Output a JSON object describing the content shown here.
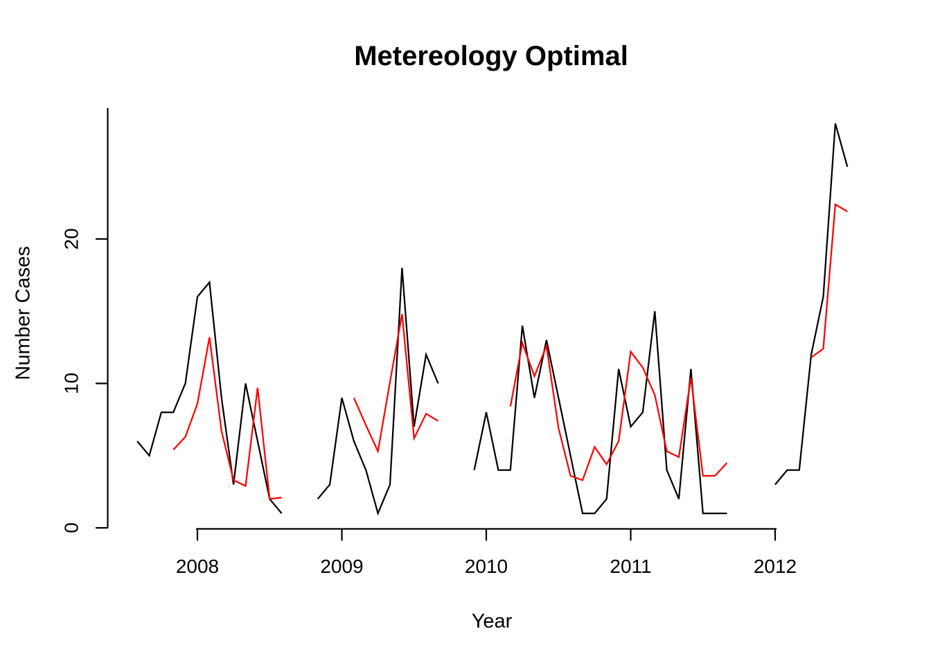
{
  "chart_data": {
    "type": "line",
    "title": "Metereology Optimal",
    "xlabel": "Year",
    "ylabel": "Number Cases",
    "x_ticks": [
      2008,
      2009,
      2010,
      2011,
      2012
    ],
    "y_ticks": [
      0,
      10,
      20
    ],
    "xlim": [
      2007.4,
      2012.8
    ],
    "ylim": [
      0,
      29
    ],
    "grid": false,
    "legend": "none",
    "x_unit": "decimal year (monthly points); line breaks = missing data",
    "series": [
      {
        "name": "black-series",
        "color": "#000000",
        "segments": [
          [
            [
              2007.5833,
              6
            ],
            [
              2007.6667,
              5
            ],
            [
              2007.75,
              8
            ],
            [
              2007.8333,
              8
            ],
            [
              2007.9167,
              10
            ],
            [
              2008.0,
              16
            ],
            [
              2008.0833,
              17
            ],
            [
              2008.1667,
              9
            ],
            [
              2008.25,
              3
            ],
            [
              2008.3333,
              10
            ],
            [
              2008.4167,
              6
            ],
            [
              2008.5,
              2
            ],
            [
              2008.5833,
              1
            ]
          ],
          [
            [
              2008.8333,
              2
            ],
            [
              2008.9167,
              3
            ],
            [
              2009.0,
              9
            ],
            [
              2009.0833,
              6
            ],
            [
              2009.1667,
              4
            ],
            [
              2009.25,
              1
            ],
            [
              2009.3333,
              3
            ],
            [
              2009.4167,
              18
            ],
            [
              2009.5,
              7
            ],
            [
              2009.5833,
              12
            ],
            [
              2009.6667,
              10
            ]
          ],
          [
            [
              2009.9167,
              4
            ],
            [
              2010.0,
              8
            ],
            [
              2010.0833,
              4
            ],
            [
              2010.1667,
              4
            ],
            [
              2010.25,
              14
            ],
            [
              2010.3333,
              9
            ],
            [
              2010.4167,
              13
            ],
            [
              2010.5,
              9
            ],
            [
              2010.5833,
              5
            ],
            [
              2010.6667,
              1
            ],
            [
              2010.75,
              1
            ],
            [
              2010.8333,
              2
            ],
            [
              2010.9167,
              11
            ],
            [
              2011.0,
              7
            ],
            [
              2011.0833,
              8
            ],
            [
              2011.1667,
              15
            ],
            [
              2011.25,
              4
            ],
            [
              2011.3333,
              2
            ],
            [
              2011.4167,
              11
            ],
            [
              2011.5,
              1
            ],
            [
              2011.5833,
              1
            ],
            [
              2011.6667,
              1
            ]
          ],
          [
            [
              2012.0,
              3
            ],
            [
              2012.0833,
              4
            ],
            [
              2012.1667,
              4
            ],
            [
              2012.25,
              12
            ],
            [
              2012.3333,
              16
            ],
            [
              2012.4167,
              28
            ],
            [
              2012.5,
              25
            ]
          ]
        ]
      },
      {
        "name": "red-series",
        "color": "#FF0000",
        "segments": [
          [
            [
              2007.8333,
              5.4
            ],
            [
              2007.9167,
              6.3
            ],
            [
              2008.0,
              8.6
            ],
            [
              2008.0833,
              13.2
            ],
            [
              2008.1667,
              6.7
            ],
            [
              2008.25,
              3.3
            ],
            [
              2008.3333,
              2.9
            ],
            [
              2008.4167,
              9.7
            ],
            [
              2008.5,
              2.0
            ],
            [
              2008.5833,
              2.1
            ]
          ],
          [
            [
              2009.0833,
              9.0
            ],
            [
              2009.1667,
              7.1
            ],
            [
              2009.25,
              5.3
            ],
            [
              2009.3333,
              10.1
            ],
            [
              2009.4167,
              14.8
            ],
            [
              2009.5,
              6.2
            ],
            [
              2009.5833,
              7.9
            ],
            [
              2009.6667,
              7.4
            ]
          ],
          [
            [
              2010.1667,
              8.4
            ],
            [
              2010.25,
              12.8
            ],
            [
              2010.3333,
              10.5
            ],
            [
              2010.4167,
              12.6
            ],
            [
              2010.5,
              6.9
            ],
            [
              2010.5833,
              3.6
            ],
            [
              2010.6667,
              3.3
            ],
            [
              2010.75,
              5.6
            ],
            [
              2010.8333,
              4.4
            ],
            [
              2010.9167,
              6.0
            ],
            [
              2011.0,
              12.2
            ],
            [
              2011.0833,
              11.1
            ],
            [
              2011.1667,
              9.2
            ],
            [
              2011.25,
              5.3
            ],
            [
              2011.3333,
              4.9
            ],
            [
              2011.4167,
              10.4
            ],
            [
              2011.5,
              3.6
            ],
            [
              2011.5833,
              3.6
            ],
            [
              2011.6667,
              4.5
            ]
          ],
          [
            [
              2012.25,
              11.8
            ],
            [
              2012.3333,
              12.4
            ],
            [
              2012.4167,
              22.4
            ],
            [
              2012.5,
              21.9
            ]
          ]
        ]
      }
    ]
  }
}
